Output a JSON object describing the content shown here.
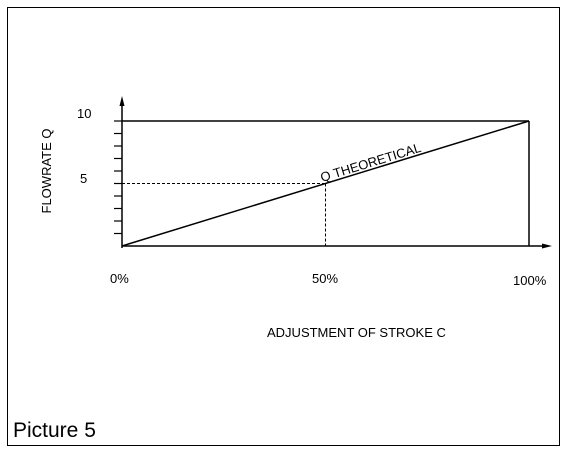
{
  "caption": "Picture 5",
  "chart_data": {
    "type": "line",
    "ylabel": "FLOWRATE Q",
    "xlabel": "ADJUSTMENT OF STROKE C",
    "x_ticks": [
      "0%",
      "50%",
      "100%"
    ],
    "y_ticks": [
      "5",
      "10"
    ],
    "ylim": [
      0,
      10
    ],
    "xlim": [
      0,
      100
    ],
    "series": [
      {
        "name": "Q THEORETICAL",
        "x": [
          0,
          100
        ],
        "y": [
          0,
          10
        ]
      }
    ],
    "guide_point": {
      "x": 50,
      "y": 5
    }
  }
}
